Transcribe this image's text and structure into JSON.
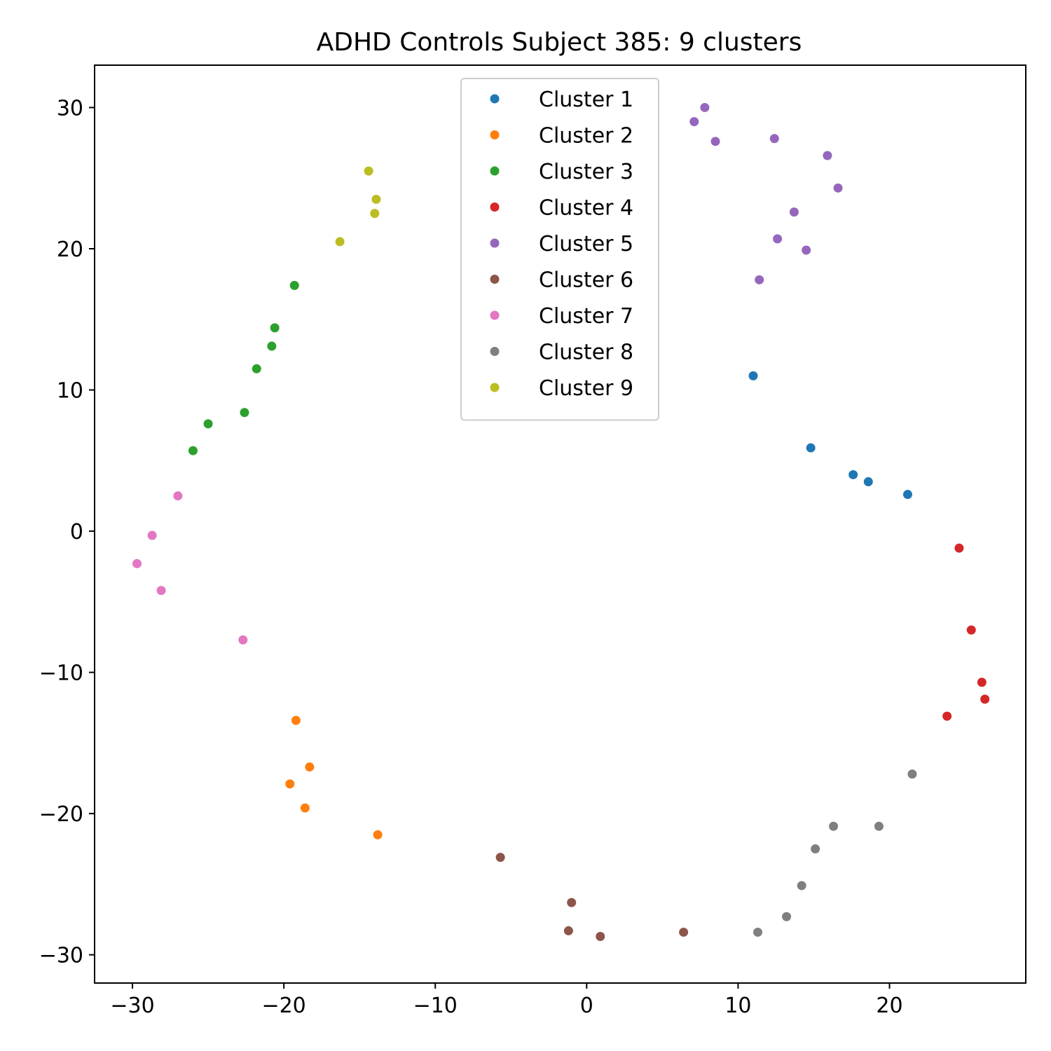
{
  "chart_data": {
    "type": "scatter",
    "title": "ADHD Controls Subject 385: 9 clusters",
    "xlabel": "",
    "ylabel": "",
    "xlim": [
      -32.5,
      29
    ],
    "ylim": [
      -32,
      33
    ],
    "xticks": [
      -30,
      -20,
      -10,
      0,
      10,
      20
    ],
    "yticks": [
      -30,
      -20,
      -10,
      0,
      10,
      20,
      30
    ],
    "grid": false,
    "legend_position": "top-center",
    "series": [
      {
        "name": "Cluster 1",
        "color": "#1f77b4",
        "points": [
          [
            11.0,
            11.0
          ],
          [
            14.8,
            5.9
          ],
          [
            17.6,
            4.0
          ],
          [
            18.6,
            3.5
          ],
          [
            21.2,
            2.6
          ]
        ]
      },
      {
        "name": "Cluster 2",
        "color": "#ff7f0e",
        "points": [
          [
            -19.2,
            -13.4
          ],
          [
            -18.3,
            -16.7
          ],
          [
            -19.6,
            -17.9
          ],
          [
            -18.6,
            -19.6
          ],
          [
            -13.8,
            -21.5
          ]
        ]
      },
      {
        "name": "Cluster 3",
        "color": "#2ca02c",
        "points": [
          [
            -19.3,
            17.4
          ],
          [
            -20.6,
            14.4
          ],
          [
            -20.8,
            13.1
          ],
          [
            -21.8,
            11.5
          ],
          [
            -22.6,
            8.4
          ],
          [
            -25.0,
            7.6
          ],
          [
            -26.0,
            5.7
          ]
        ]
      },
      {
        "name": "Cluster 4",
        "color": "#d62728",
        "points": [
          [
            24.6,
            -1.2
          ],
          [
            25.4,
            -7.0
          ],
          [
            26.1,
            -10.7
          ],
          [
            26.3,
            -11.9
          ],
          [
            23.8,
            -13.1
          ]
        ]
      },
      {
        "name": "Cluster 5",
        "color": "#9467bd",
        "points": [
          [
            7.8,
            30.0
          ],
          [
            7.1,
            29.0
          ],
          [
            8.5,
            27.6
          ],
          [
            12.4,
            27.8
          ],
          [
            15.9,
            26.6
          ],
          [
            16.6,
            24.3
          ],
          [
            13.7,
            22.6
          ],
          [
            12.6,
            20.7
          ],
          [
            14.5,
            19.9
          ],
          [
            11.4,
            17.8
          ]
        ]
      },
      {
        "name": "Cluster 6",
        "color": "#8c564b",
        "points": [
          [
            -5.7,
            -23.1
          ],
          [
            -1.0,
            -26.3
          ],
          [
            -1.2,
            -28.3
          ],
          [
            0.9,
            -28.7
          ],
          [
            6.4,
            -28.4
          ]
        ]
      },
      {
        "name": "Cluster 7",
        "color": "#e377c2",
        "points": [
          [
            -27.0,
            2.5
          ],
          [
            -28.7,
            -0.3
          ],
          [
            -29.7,
            -2.3
          ],
          [
            -28.1,
            -4.2
          ],
          [
            -22.7,
            -7.7
          ]
        ]
      },
      {
        "name": "Cluster 8",
        "color": "#7f7f7f",
        "points": [
          [
            21.5,
            -17.2
          ],
          [
            16.3,
            -20.9
          ],
          [
            19.3,
            -20.9
          ],
          [
            15.1,
            -22.5
          ],
          [
            14.2,
            -25.1
          ],
          [
            13.2,
            -27.3
          ],
          [
            11.3,
            -28.4
          ]
        ]
      },
      {
        "name": "Cluster 9",
        "color": "#bcbd22",
        "points": [
          [
            -14.4,
            25.5
          ],
          [
            -13.9,
            23.5
          ],
          [
            -14.0,
            22.5
          ],
          [
            -16.3,
            20.5
          ]
        ]
      }
    ]
  }
}
